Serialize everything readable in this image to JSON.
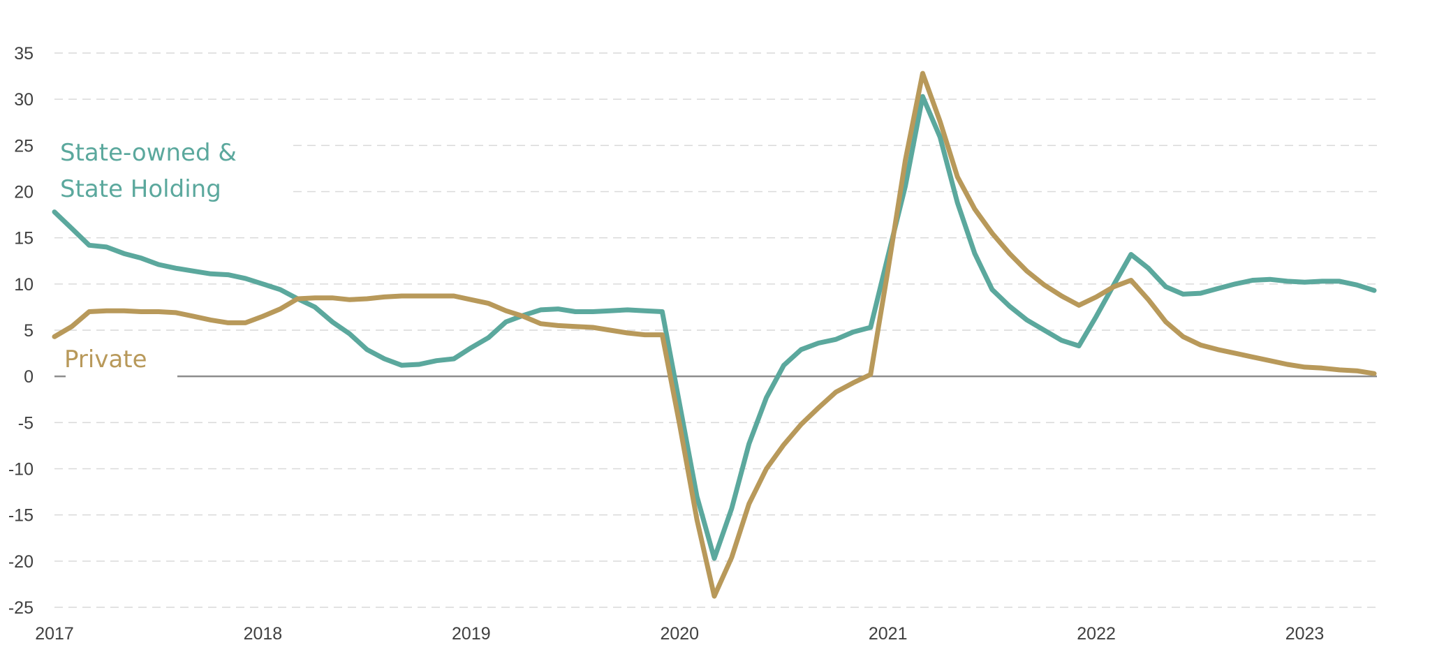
{
  "chart_data": {
    "type": "line",
    "title": "",
    "xlabel": "",
    "ylabel": "",
    "ylim": [
      -25,
      35
    ],
    "yticks": [
      35,
      30,
      25,
      20,
      15,
      10,
      5,
      0,
      -5,
      -10,
      -15,
      -20,
      -25
    ],
    "ytick_labels": [
      "35",
      "30",
      "25",
      "20",
      "15",
      "10",
      "5",
      "0",
      "-5",
      "-10",
      "-15",
      "-20",
      "-25"
    ],
    "xlim": [
      "2017-01",
      "2023-05"
    ],
    "xticks": [
      "2017-01",
      "2018-01",
      "2019-01",
      "2020-01",
      "2021-01",
      "2022-01",
      "2023-01"
    ],
    "xtick_labels": [
      "2017",
      "2018",
      "2019",
      "2020",
      "2021",
      "2022",
      "2023"
    ],
    "grid": true,
    "legend": "inline labels",
    "colors": {
      "state": "#5ba89d",
      "private": "#b8995a",
      "zero_line": "#8c8c8c",
      "grid": "#d9d9d9"
    },
    "series": [
      {
        "name": "State-owned & State Holding",
        "label_lines": [
          "State-owned &",
          "State Holding"
        ],
        "color": "#5ba89d",
        "points": [
          [
            "2017-01",
            17.8
          ],
          [
            "2017-02",
            16
          ],
          [
            "2017-03",
            14.2
          ],
          [
            "2017-04",
            14
          ],
          [
            "2017-05",
            13.3
          ],
          [
            "2017-06",
            12.8
          ],
          [
            "2017-07",
            12.1
          ],
          [
            "2017-08",
            11.7
          ],
          [
            "2017-09",
            11.4
          ],
          [
            "2017-10",
            11.1
          ],
          [
            "2017-11",
            11
          ],
          [
            "2017-12",
            10.6
          ],
          [
            "2018-01",
            10
          ],
          [
            "2018-02",
            9.4
          ],
          [
            "2018-03",
            8.4
          ],
          [
            "2018-04",
            7.5
          ],
          [
            "2018-05",
            5.9
          ],
          [
            "2018-06",
            4.6
          ],
          [
            "2018-07",
            2.9
          ],
          [
            "2018-08",
            1.9
          ],
          [
            "2018-09",
            1.2
          ],
          [
            "2018-10",
            1.3
          ],
          [
            "2018-11",
            1.7
          ],
          [
            "2018-12",
            1.9
          ],
          [
            "2019-01",
            3.1
          ],
          [
            "2019-02",
            4.2
          ],
          [
            "2019-03",
            5.9
          ],
          [
            "2019-04",
            6.6
          ],
          [
            "2019-05",
            7.2
          ],
          [
            "2019-06",
            7.3
          ],
          [
            "2019-07",
            7
          ],
          [
            "2019-08",
            7
          ],
          [
            "2019-09",
            7.1
          ],
          [
            "2019-10",
            7.2
          ],
          [
            "2019-11",
            7.1
          ],
          [
            "2019-12",
            7
          ],
          [
            "2020-01",
            -3
          ],
          [
            "2020-02",
            -13
          ],
          [
            "2020-03",
            -19.7
          ],
          [
            "2020-04",
            -14.3
          ],
          [
            "2020-05",
            -7.3
          ],
          [
            "2020-06",
            -2.3
          ],
          [
            "2020-07",
            1.2
          ],
          [
            "2020-08",
            2.9
          ],
          [
            "2020-09",
            3.6
          ],
          [
            "2020-10",
            4
          ],
          [
            "2020-11",
            4.8
          ],
          [
            "2020-12",
            5.3
          ],
          [
            "2021-01",
            13
          ],
          [
            "2021-02",
            20.6
          ],
          [
            "2021-03",
            30.3
          ],
          [
            "2021-04",
            25.9
          ],
          [
            "2021-05",
            18.8
          ],
          [
            "2021-06",
            13.3
          ],
          [
            "2021-07",
            9.4
          ],
          [
            "2021-08",
            7.6
          ],
          [
            "2021-09",
            6.1
          ],
          [
            "2021-10",
            5
          ],
          [
            "2021-11",
            3.9
          ],
          [
            "2021-12",
            3.3
          ],
          [
            "2022-01",
            6.5
          ],
          [
            "2022-02",
            9.9
          ],
          [
            "2022-03",
            13.2
          ],
          [
            "2022-04",
            11.7
          ],
          [
            "2022-05",
            9.7
          ],
          [
            "2022-06",
            8.9
          ],
          [
            "2022-07",
            9
          ],
          [
            "2022-08",
            9.5
          ],
          [
            "2022-09",
            10
          ],
          [
            "2022-10",
            10.4
          ],
          [
            "2022-11",
            10.5
          ],
          [
            "2022-12",
            10.3
          ],
          [
            "2023-01",
            10.2
          ],
          [
            "2023-02",
            10.3
          ],
          [
            "2023-03",
            10.3
          ],
          [
            "2023-04",
            9.9
          ],
          [
            "2023-05",
            9.3
          ]
        ]
      },
      {
        "name": "Private",
        "label_lines": [
          "Private"
        ],
        "color": "#b8995a",
        "points": [
          [
            "2017-01",
            4.3
          ],
          [
            "2017-02",
            5.4
          ],
          [
            "2017-03",
            7
          ],
          [
            "2017-04",
            7.1
          ],
          [
            "2017-05",
            7.1
          ],
          [
            "2017-06",
            7
          ],
          [
            "2017-07",
            7
          ],
          [
            "2017-08",
            6.9
          ],
          [
            "2017-09",
            6.5
          ],
          [
            "2017-10",
            6.1
          ],
          [
            "2017-11",
            5.8
          ],
          [
            "2017-12",
            5.8
          ],
          [
            "2018-01",
            6.5
          ],
          [
            "2018-02",
            7.3
          ],
          [
            "2018-03",
            8.4
          ],
          [
            "2018-04",
            8.5
          ],
          [
            "2018-05",
            8.5
          ],
          [
            "2018-06",
            8.3
          ],
          [
            "2018-07",
            8.4
          ],
          [
            "2018-08",
            8.6
          ],
          [
            "2018-09",
            8.7
          ],
          [
            "2018-10",
            8.7
          ],
          [
            "2018-11",
            8.7
          ],
          [
            "2018-12",
            8.7
          ],
          [
            "2019-01",
            8.3
          ],
          [
            "2019-02",
            7.9
          ],
          [
            "2019-03",
            7.1
          ],
          [
            "2019-04",
            6.5
          ],
          [
            "2019-05",
            5.7
          ],
          [
            "2019-06",
            5.5
          ],
          [
            "2019-07",
            5.4
          ],
          [
            "2019-08",
            5.3
          ],
          [
            "2019-09",
            5
          ],
          [
            "2019-10",
            4.7
          ],
          [
            "2019-11",
            4.5
          ],
          [
            "2019-12",
            4.5
          ],
          [
            "2020-01",
            -5.2
          ],
          [
            "2020-02",
            -15.5
          ],
          [
            "2020-03",
            -23.8
          ],
          [
            "2020-04",
            -19.6
          ],
          [
            "2020-05",
            -13.8
          ],
          [
            "2020-06",
            -10
          ],
          [
            "2020-07",
            -7.4
          ],
          [
            "2020-08",
            -5.2
          ],
          [
            "2020-09",
            -3.4
          ],
          [
            "2020-10",
            -1.7
          ],
          [
            "2020-11",
            -0.7
          ],
          [
            "2020-12",
            0.2
          ],
          [
            "2021-01",
            11.5
          ],
          [
            "2021-02",
            23.4
          ],
          [
            "2021-03",
            32.8
          ],
          [
            "2021-04",
            27.6
          ],
          [
            "2021-05",
            21.6
          ],
          [
            "2021-06",
            18.1
          ],
          [
            "2021-07",
            15.5
          ],
          [
            "2021-08",
            13.3
          ],
          [
            "2021-09",
            11.4
          ],
          [
            "2021-10",
            9.9
          ],
          [
            "2021-11",
            8.7
          ],
          [
            "2021-12",
            7.7
          ],
          [
            "2022-01",
            8.6
          ],
          [
            "2022-02",
            9.7
          ],
          [
            "2022-03",
            10.4
          ],
          [
            "2022-04",
            8.3
          ],
          [
            "2022-05",
            5.9
          ],
          [
            "2022-06",
            4.3
          ],
          [
            "2022-07",
            3.4
          ],
          [
            "2022-08",
            2.9
          ],
          [
            "2022-09",
            2.5
          ],
          [
            "2022-10",
            2.1
          ],
          [
            "2022-11",
            1.7
          ],
          [
            "2022-12",
            1.3
          ],
          [
            "2023-01",
            1
          ],
          [
            "2023-02",
            0.9
          ],
          [
            "2023-03",
            0.7
          ],
          [
            "2023-04",
            0.6
          ],
          [
            "2023-05",
            0.3
          ]
        ]
      }
    ]
  }
}
